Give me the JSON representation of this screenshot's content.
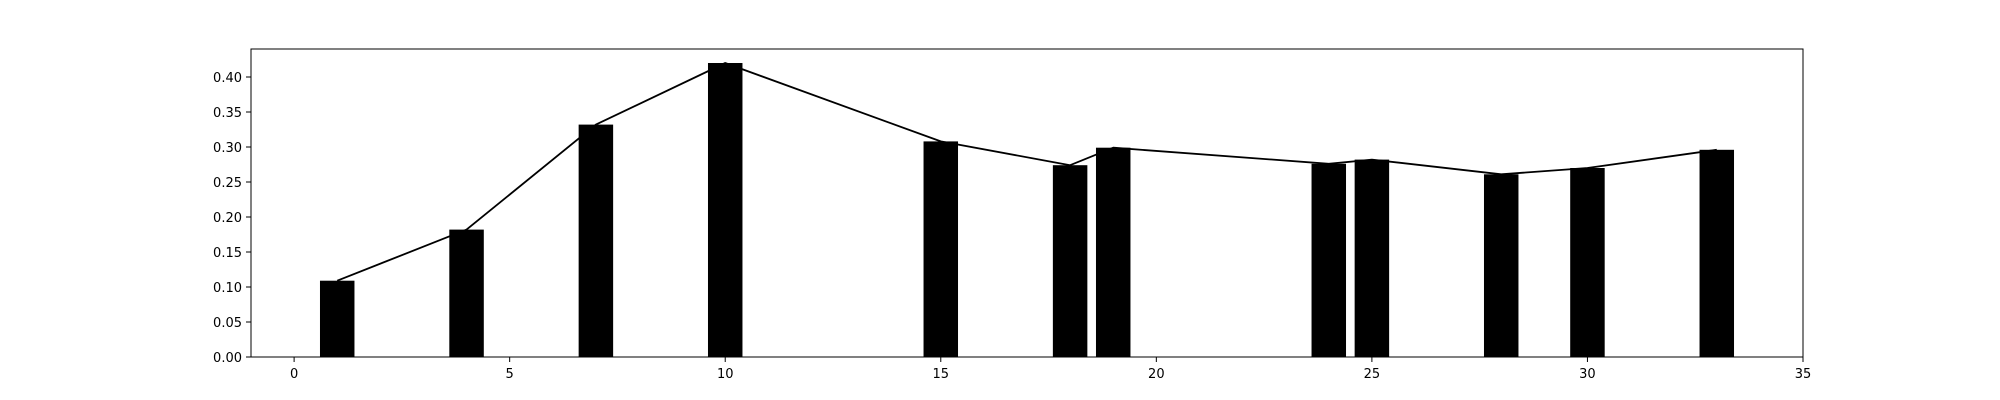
{
  "chart_data": {
    "type": "bar",
    "x": [
      1,
      4,
      7,
      10,
      15,
      18,
      19,
      24,
      25,
      28,
      30,
      33
    ],
    "values": [
      0.109,
      0.182,
      0.332,
      0.42,
      0.308,
      0.274,
      0.299,
      0.276,
      0.282,
      0.261,
      0.27,
      0.296
    ],
    "line_overlay": true,
    "bar_width": 0.8,
    "xlim": [
      -1,
      35
    ],
    "ylim": [
      0.0,
      0.44
    ],
    "xticks": [
      0,
      5,
      10,
      15,
      20,
      25,
      30,
      35
    ],
    "xtick_labels": [
      "0",
      "5",
      "10",
      "15",
      "20",
      "25",
      "30",
      "35"
    ],
    "yticks": [
      0.0,
      0.05,
      0.1,
      0.15,
      0.2,
      0.25,
      0.3,
      0.35,
      0.4
    ],
    "ytick_labels": [
      "0.00",
      "0.05",
      "0.10",
      "0.15",
      "0.20",
      "0.25",
      "0.30",
      "0.35",
      "0.40"
    ],
    "title": "",
    "xlabel": "",
    "ylabel": "",
    "grid": false,
    "colors": {
      "bar": "#000000",
      "line": "#000000",
      "axes": "#000000"
    }
  }
}
